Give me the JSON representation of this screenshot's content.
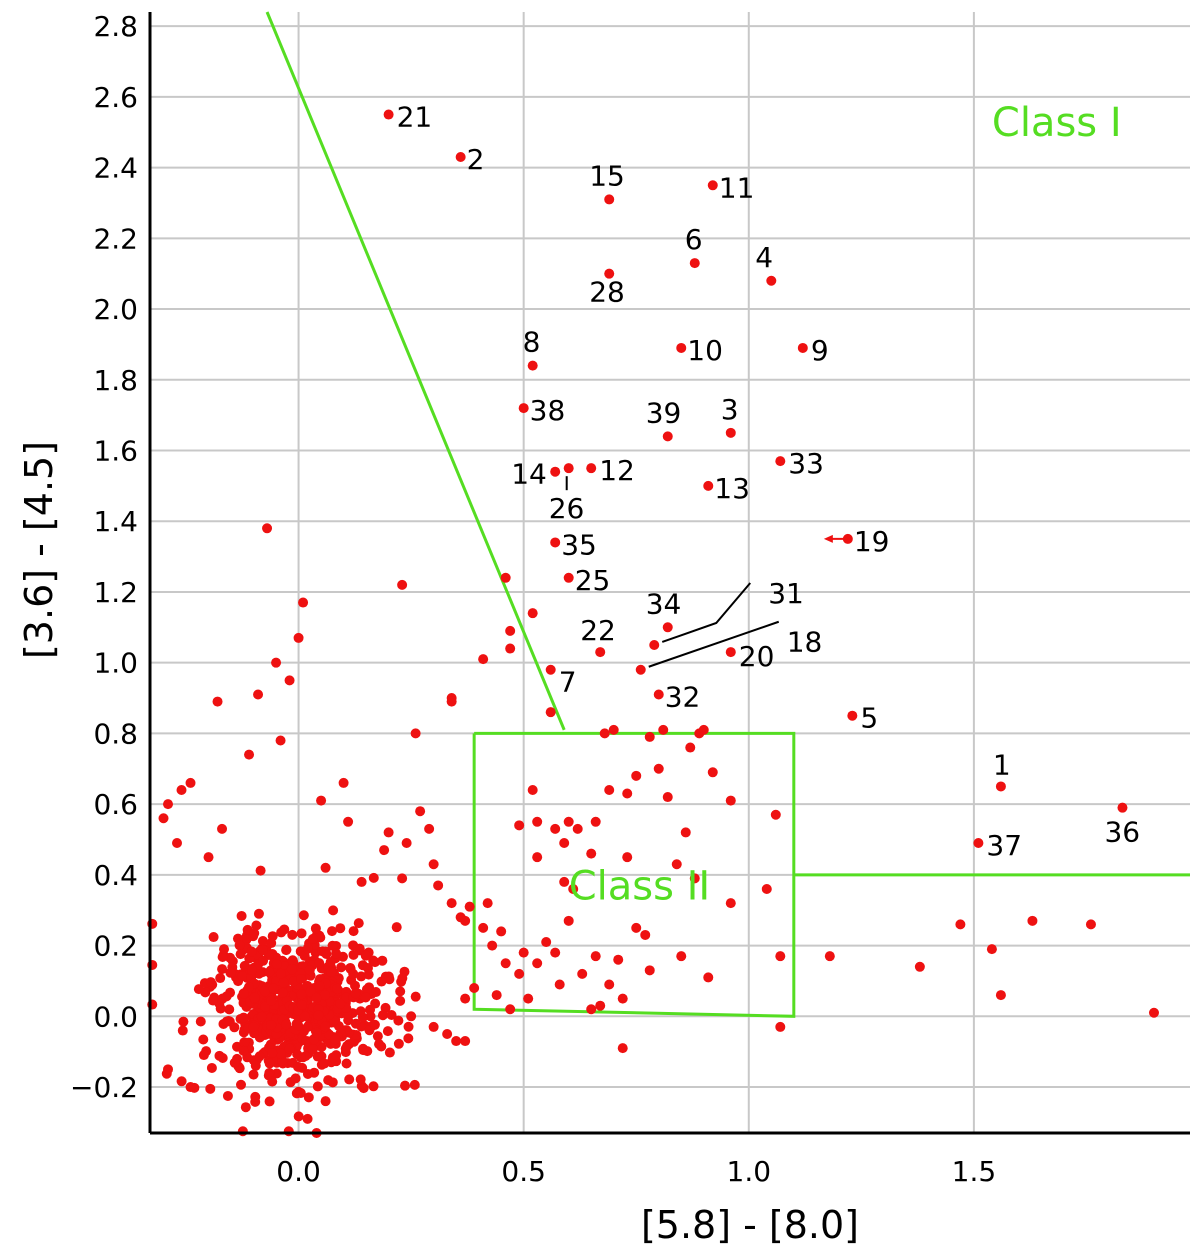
{
  "chart_data": {
    "type": "scatter",
    "xlabel": "[5.8] - [8.0]",
    "ylabel": "[3.6] - [4.5]",
    "xlim": [
      -0.33,
      1.98
    ],
    "ylim": [
      -0.33,
      2.84
    ],
    "x_ticks": [
      "0.0",
      "0.5",
      "1.0",
      "1.5"
    ],
    "x_tick_values": [
      0.0,
      0.5,
      1.0,
      1.5
    ],
    "y_ticks": [
      "2.8",
      "2.6",
      "2.4",
      "2.2",
      "2.0",
      "1.8",
      "1.6",
      "1.4",
      "1.2",
      "1.0",
      "0.8",
      "0.6",
      "0.4",
      "0.2",
      "0.0",
      "−0.2"
    ],
    "y_tick_values": [
      2.8,
      2.6,
      2.4,
      2.2,
      2.0,
      1.8,
      1.6,
      1.4,
      1.2,
      1.0,
      0.8,
      0.6,
      0.4,
      0.2,
      0.0,
      -0.2
    ],
    "x_grid": [
      0.0,
      0.5,
      1.0,
      1.5
    ],
    "y_grid": [
      2.8,
      2.6,
      2.4,
      2.2,
      2.0,
      1.8,
      1.6,
      1.4,
      1.2,
      1.0,
      0.8,
      0.6,
      0.4,
      0.2,
      0.0,
      -0.2
    ],
    "grid": true,
    "colors": {
      "points": "#ee1111",
      "regions": "#55dd22",
      "grid": "#c8c8c8"
    },
    "region_labels": [
      {
        "text": "Class I",
        "x": 1.54,
        "y": 2.49
      },
      {
        "text": "Class  II",
        "x": 0.6,
        "y": 0.33
      }
    ],
    "boundaries": [
      {
        "name": "class-i-boundary-line",
        "points": [
          [
            -0.07,
            2.84
          ],
          [
            0.59,
            0.81
          ]
        ]
      },
      {
        "name": "class-ii-box",
        "points": [
          [
            0.39,
            0.8
          ],
          [
            1.1,
            0.8
          ],
          [
            1.1,
            0.0
          ],
          [
            0.39,
            0.02
          ],
          [
            0.39,
            0.8
          ]
        ]
      },
      {
        "name": "class-ii-extension-line",
        "points": [
          [
            1.1,
            0.4
          ],
          [
            1.98,
            0.4
          ]
        ]
      }
    ],
    "labeled_points": [
      {
        "label": "1",
        "x": 1.56,
        "y": 0.65
      },
      {
        "label": "2",
        "x": 0.36,
        "y": 2.43
      },
      {
        "label": "3",
        "x": 0.96,
        "y": 1.65
      },
      {
        "label": "4",
        "x": 1.05,
        "y": 2.08
      },
      {
        "label": "5",
        "x": 1.23,
        "y": 0.85
      },
      {
        "label": "6",
        "x": 0.88,
        "y": 2.13
      },
      {
        "label": "7",
        "x": 0.56,
        "y": 0.98
      },
      {
        "label": "8",
        "x": 0.52,
        "y": 1.84
      },
      {
        "label": "9",
        "x": 1.12,
        "y": 1.89
      },
      {
        "label": "10",
        "x": 0.85,
        "y": 1.89
      },
      {
        "label": "11",
        "x": 0.92,
        "y": 2.35
      },
      {
        "label": "12",
        "x": 0.65,
        "y": 1.55
      },
      {
        "label": "13",
        "x": 0.91,
        "y": 1.5
      },
      {
        "label": "14",
        "x": 0.57,
        "y": 1.54
      },
      {
        "label": "15",
        "x": 0.69,
        "y": 2.31
      },
      {
        "label": "18",
        "x": 0.76,
        "y": 0.98
      },
      {
        "label": "19",
        "x": 1.22,
        "y": 1.35
      },
      {
        "label": "20",
        "x": 0.96,
        "y": 1.03
      },
      {
        "label": "21",
        "x": 0.2,
        "y": 2.55
      },
      {
        "label": "22",
        "x": 0.67,
        "y": 1.03
      },
      {
        "label": "25",
        "x": 0.6,
        "y": 1.24
      },
      {
        "label": "26",
        "x": 0.6,
        "y": 1.55
      },
      {
        "label": "28",
        "x": 0.69,
        "y": 2.1
      },
      {
        "label": "31",
        "x": 0.79,
        "y": 1.05
      },
      {
        "label": "32",
        "x": 0.8,
        "y": 0.91
      },
      {
        "label": "33",
        "x": 1.07,
        "y": 1.57
      },
      {
        "label": "34",
        "x": 0.82,
        "y": 1.1
      },
      {
        "label": "35",
        "x": 0.57,
        "y": 1.34
      },
      {
        "label": "36",
        "x": 1.83,
        "y": 0.59
      },
      {
        "label": "37",
        "x": 1.51,
        "y": 0.49
      },
      {
        "label": "38",
        "x": 0.5,
        "y": 1.72
      },
      {
        "label": "39",
        "x": 0.82,
        "y": 1.64
      }
    ],
    "unlabeled_points": [
      [
        -0.07,
        1.38
      ],
      [
        0.23,
        1.22
      ],
      [
        0.01,
        1.17
      ],
      [
        0.0,
        1.07
      ],
      [
        -0.05,
        1.0
      ],
      [
        -0.02,
        0.95
      ],
      [
        -0.09,
        0.91
      ],
      [
        -0.18,
        0.89
      ],
      [
        -0.04,
        0.78
      ],
      [
        -0.11,
        0.74
      ],
      [
        0.26,
        0.8
      ],
      [
        0.34,
        0.9
      ],
      [
        0.34,
        0.89
      ],
      [
        0.46,
        1.24
      ],
      [
        0.47,
        1.09
      ],
      [
        0.47,
        1.04
      ],
      [
        0.41,
        1.01
      ],
      [
        0.52,
        1.14
      ],
      [
        0.56,
        0.86
      ],
      [
        0.52,
        0.64
      ],
      [
        0.53,
        0.55
      ],
      [
        0.57,
        0.53
      ],
      [
        0.59,
        0.38
      ],
      [
        0.61,
        0.36
      ],
      [
        0.68,
        0.8
      ],
      [
        0.7,
        0.81
      ],
      [
        0.69,
        0.64
      ],
      [
        0.66,
        0.55
      ],
      [
        0.65,
        0.46
      ],
      [
        0.73,
        0.63
      ],
      [
        0.75,
        0.68
      ],
      [
        0.8,
        0.7
      ],
      [
        0.81,
        0.81
      ],
      [
        0.82,
        0.62
      ],
      [
        0.86,
        0.52
      ],
      [
        0.87,
        0.76
      ],
      [
        0.89,
        0.8
      ],
      [
        0.9,
        0.81
      ],
      [
        0.92,
        0.69
      ],
      [
        0.96,
        0.61
      ],
      [
        0.84,
        0.43
      ],
      [
        0.88,
        0.39
      ],
      [
        0.96,
        0.32
      ],
      [
        1.06,
        0.57
      ],
      [
        1.04,
        0.36
      ],
      [
        0.73,
        0.45
      ],
      [
        0.77,
        0.23
      ],
      [
        0.71,
        0.16
      ],
      [
        0.66,
        0.17
      ],
      [
        0.63,
        0.12
      ],
      [
        0.69,
        0.09
      ],
      [
        0.75,
        0.25
      ],
      [
        0.78,
        0.13
      ],
      [
        0.85,
        0.17
      ],
      [
        0.91,
        0.11
      ],
      [
        0.72,
        0.05
      ],
      [
        0.67,
        0.03
      ],
      [
        0.65,
        0.02
      ],
      [
        0.72,
        -0.09
      ],
      [
        1.07,
        0.17
      ],
      [
        1.07,
        -0.03
      ],
      [
        1.18,
        0.17
      ],
      [
        1.38,
        0.14
      ],
      [
        1.47,
        0.26
      ],
      [
        1.54,
        0.19
      ],
      [
        1.56,
        0.06
      ],
      [
        1.63,
        0.27
      ],
      [
        1.76,
        0.26
      ],
      [
        1.9,
        0.01
      ],
      [
        0.6,
        0.27
      ],
      [
        0.55,
        0.21
      ],
      [
        0.57,
        0.18
      ],
      [
        0.53,
        0.15
      ],
      [
        0.58,
        0.09
      ],
      [
        0.51,
        0.05
      ],
      [
        0.49,
        0.12
      ],
      [
        0.46,
        0.15
      ],
      [
        0.44,
        0.06
      ],
      [
        0.47,
        0.02
      ],
      [
        0.43,
        0.2
      ],
      [
        0.45,
        0.24
      ],
      [
        0.5,
        0.18
      ],
      [
        0.41,
        0.25
      ],
      [
        0.38,
        0.31
      ],
      [
        0.39,
        0.08
      ],
      [
        0.42,
        0.32
      ],
      [
        0.49,
        0.54
      ],
      [
        0.53,
        0.45
      ],
      [
        0.59,
        0.49
      ],
      [
        0.62,
        0.53
      ],
      [
        0.78,
        0.79
      ],
      [
        0.6,
        0.55
      ],
      [
        -0.24,
        0.66
      ],
      [
        -0.26,
        0.64
      ],
      [
        -0.29,
        0.6
      ],
      [
        -0.3,
        0.56
      ],
      [
        -0.17,
        0.53
      ],
      [
        -0.2,
        0.45
      ],
      [
        0.05,
        0.61
      ],
      [
        0.1,
        0.66
      ],
      [
        0.11,
        0.55
      ],
      [
        0.14,
        0.38
      ],
      [
        0.19,
        0.47
      ],
      [
        0.2,
        0.52
      ],
      [
        0.24,
        0.49
      ],
      [
        0.27,
        0.58
      ],
      [
        0.29,
        0.53
      ],
      [
        0.3,
        0.43
      ],
      [
        0.31,
        0.37
      ],
      [
        0.34,
        0.32
      ],
      [
        0.36,
        0.28
      ],
      [
        0.37,
        0.27
      ],
      [
        0.37,
        0.05
      ],
      [
        0.37,
        -0.07
      ],
      [
        0.35,
        -0.07
      ],
      [
        0.33,
        -0.05
      ],
      [
        0.3,
        -0.03
      ],
      [
        0.25,
        0.0
      ],
      [
        -0.24,
        -0.2
      ],
      [
        -0.29,
        -0.15
      ],
      [
        0.06,
        -0.24
      ],
      [
        0.04,
        -0.33
      ],
      [
        0.02,
        -0.29
      ],
      [
        -0.27,
        0.49
      ],
      [
        0.06,
        0.42
      ],
      [
        0.23,
        0.39
      ]
    ],
    "core_cluster": {
      "center": [
        0.0,
        0.03
      ],
      "spread": [
        0.1,
        0.11
      ],
      "count": 700,
      "seed": 7
    }
  }
}
